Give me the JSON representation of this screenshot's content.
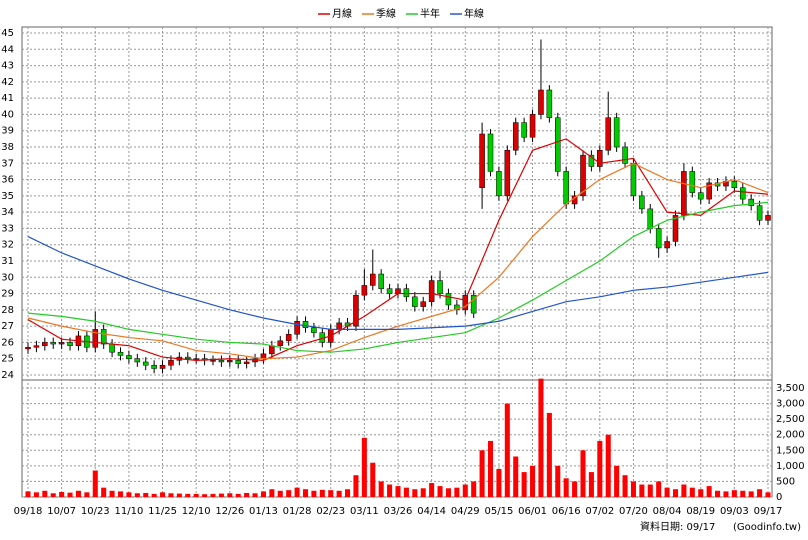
{
  "chart_data": {
    "type": "candlestick",
    "up_color": "#dd0000",
    "down_color": "#00cc00",
    "grid": true,
    "legend": "top",
    "categories": [
      "09/18",
      null,
      null,
      null,
      "10/07",
      null,
      null,
      null,
      "10/23",
      null,
      null,
      null,
      "11/10",
      null,
      null,
      null,
      "11/25",
      null,
      null,
      null,
      "12/10",
      null,
      null,
      null,
      "12/26",
      null,
      null,
      null,
      "01/13",
      null,
      null,
      null,
      "01/28",
      null,
      null,
      null,
      "02/23",
      null,
      null,
      null,
      "03/11",
      null,
      null,
      null,
      "03/26",
      null,
      null,
      null,
      "04/14",
      null,
      null,
      null,
      "04/29",
      null,
      null,
      null,
      "05/15",
      null,
      null,
      null,
      "06/01",
      null,
      null,
      null,
      "06/16",
      null,
      null,
      null,
      "07/02",
      null,
      null,
      null,
      "07/20",
      null,
      null,
      null,
      "08/04",
      null,
      null,
      null,
      "08/19",
      null,
      null,
      null,
      "09/03",
      null,
      null,
      null,
      "09/17"
    ],
    "open": [
      25.6,
      25.7,
      25.8,
      26.0,
      25.9,
      26.0,
      25.8,
      26.4,
      25.7,
      26.8,
      25.9,
      25.4,
      25.2,
      25.0,
      24.8,
      24.6,
      24.4,
      24.6,
      24.9,
      25.1,
      25.0,
      25.0,
      24.9,
      24.9,
      24.8,
      24.9,
      24.7,
      24.8,
      25.0,
      25.3,
      25.8,
      26.1,
      26.5,
      27.3,
      26.9,
      26.6,
      26.0,
      26.8,
      27.2,
      27.0,
      28.9,
      29.5,
      30.2,
      29.3,
      29.0,
      29.3,
      28.8,
      28.2,
      28.5,
      29.8,
      29.0,
      28.3,
      28.0,
      28.9,
      35.5,
      38.8,
      36.5,
      35.0,
      37.8,
      39.5,
      38.6,
      40.0,
      41.5,
      39.8,
      36.5,
      34.5,
      35.0,
      37.5,
      36.8,
      37.8,
      39.8,
      38.0,
      37.0,
      35.0,
      34.2,
      33.0,
      31.8,
      32.2,
      33.8,
      36.5,
      35.2,
      34.8,
      35.8,
      35.6,
      35.9,
      35.5,
      34.8,
      34.4,
      33.5
    ],
    "high": [
      26.0,
      26.1,
      26.3,
      26.3,
      26.3,
      26.3,
      26.7,
      26.7,
      27.9,
      27.1,
      26.2,
      25.7,
      25.5,
      25.3,
      25.1,
      24.9,
      24.9,
      25.2,
      25.4,
      25.4,
      25.3,
      25.3,
      25.2,
      25.2,
      25.2,
      25.2,
      25.1,
      25.3,
      25.6,
      26.1,
      26.4,
      26.8,
      27.6,
      27.6,
      27.2,
      26.9,
      27.1,
      27.5,
      27.5,
      29.2,
      30.5,
      31.7,
      30.5,
      29.6,
      29.6,
      29.6,
      29.1,
      28.8,
      30.1,
      30.4,
      29.3,
      28.6,
      29.2,
      29.2,
      39.5,
      39.1,
      36.8,
      38.1,
      39.8,
      39.8,
      40.3,
      44.6,
      41.8,
      40.1,
      36.8,
      35.3,
      37.8,
      37.8,
      38.1,
      41.4,
      40.1,
      38.3,
      37.3,
      35.3,
      34.5,
      33.3,
      32.5,
      34.1,
      37.0,
      36.8,
      35.5,
      36.1,
      36.1,
      36.2,
      36.2,
      35.8,
      35.1,
      34.7,
      34.1
    ],
    "low": [
      25.3,
      25.4,
      25.5,
      25.6,
      25.6,
      25.5,
      25.5,
      25.4,
      25.4,
      25.6,
      25.1,
      24.9,
      24.7,
      24.5,
      24.3,
      24.1,
      24.1,
      24.3,
      24.6,
      24.7,
      24.7,
      24.6,
      24.6,
      24.5,
      24.5,
      24.4,
      24.4,
      24.5,
      24.7,
      25.0,
      25.5,
      25.8,
      26.2,
      26.6,
      26.3,
      25.7,
      25.7,
      26.5,
      26.7,
      26.7,
      28.6,
      29.2,
      29.0,
      28.7,
      28.7,
      28.5,
      27.9,
      27.9,
      28.2,
      28.7,
      28.0,
      27.7,
      27.7,
      27.5,
      34.2,
      36.2,
      34.7,
      34.7,
      37.5,
      38.3,
      38.3,
      39.7,
      39.5,
      36.2,
      34.2,
      34.2,
      34.7,
      36.5,
      36.5,
      37.5,
      37.7,
      36.7,
      34.7,
      33.9,
      32.7,
      31.2,
      31.5,
      31.9,
      33.5,
      34.9,
      34.5,
      34.5,
      35.3,
      35.3,
      35.2,
      34.5,
      34.1,
      33.2,
      33.2
    ],
    "close": [
      25.7,
      25.8,
      26.0,
      25.9,
      26.0,
      25.8,
      26.4,
      25.7,
      26.8,
      25.9,
      25.4,
      25.2,
      25.0,
      24.8,
      24.6,
      24.4,
      24.6,
      24.9,
      25.1,
      25.0,
      25.0,
      24.9,
      24.9,
      24.8,
      24.9,
      24.7,
      24.8,
      25.0,
      25.3,
      25.8,
      26.1,
      26.5,
      27.3,
      26.9,
      26.6,
      26.0,
      26.8,
      27.2,
      27.0,
      28.9,
      29.5,
      30.2,
      29.3,
      29.0,
      29.3,
      28.8,
      28.2,
      28.5,
      29.8,
      29.0,
      28.3,
      28.0,
      28.9,
      27.8,
      38.8,
      36.5,
      35.0,
      37.8,
      39.5,
      38.6,
      40.0,
      41.5,
      39.8,
      36.5,
      34.5,
      35.0,
      37.5,
      36.8,
      37.8,
      39.8,
      38.0,
      37.0,
      35.0,
      34.2,
      33.0,
      31.8,
      32.2,
      33.8,
      36.5,
      35.2,
      34.8,
      35.8,
      35.6,
      35.9,
      35.5,
      34.8,
      34.4,
      33.5,
      33.8
    ],
    "volume": [
      180,
      150,
      200,
      120,
      160,
      140,
      200,
      150,
      850,
      300,
      200,
      180,
      150,
      120,
      130,
      100,
      150,
      120,
      110,
      100,
      100,
      90,
      100,
      110,
      120,
      100,
      130,
      120,
      180,
      250,
      200,
      220,
      300,
      250,
      200,
      230,
      220,
      200,
      250,
      700,
      1900,
      1100,
      500,
      400,
      350,
      300,
      250,
      280,
      450,
      350,
      280,
      300,
      400,
      500,
      1500,
      1800,
      900,
      3000,
      1300,
      800,
      1000,
      3800,
      2700,
      1000,
      600,
      500,
      1500,
      800,
      1800,
      2000,
      1000,
      700,
      500,
      400,
      400,
      500,
      300,
      250,
      400,
      300,
      250,
      350,
      200,
      180,
      220,
      200,
      180,
      250,
      150
    ],
    "volume_color": "#ff0000",
    "series": [
      {
        "name": "月線",
        "color": "#dd0000",
        "x": [
          0,
          4,
          8,
          12,
          16,
          20,
          24,
          28,
          32,
          36,
          40,
          44,
          48,
          52,
          56,
          60,
          64,
          68,
          72,
          76,
          80,
          84,
          88
        ],
        "values": [
          27.4,
          26.2,
          26.0,
          25.8,
          25.1,
          24.9,
          25.0,
          24.9,
          25.8,
          26.4,
          27.6,
          29.0,
          29.0,
          28.6,
          33.5,
          37.8,
          38.5,
          37.0,
          37.3,
          34.0,
          33.8,
          35.3,
          35.1
        ]
      },
      {
        "name": "季線",
        "color": "#ee7722",
        "x": [
          0,
          4,
          8,
          12,
          16,
          20,
          24,
          28,
          32,
          36,
          40,
          44,
          48,
          52,
          56,
          60,
          64,
          68,
          72,
          76,
          80,
          84,
          88
        ],
        "values": [
          27.5,
          27.0,
          26.6,
          26.3,
          26.1,
          25.5,
          25.3,
          25.0,
          25.1,
          25.5,
          26.3,
          27.0,
          27.6,
          28.2,
          30.0,
          32.5,
          34.5,
          36.0,
          37.0,
          36.0,
          35.5,
          36.0,
          35.2
        ]
      },
      {
        "name": "半年",
        "color": "#22cc22",
        "x": [
          0,
          4,
          8,
          12,
          16,
          20,
          24,
          28,
          32,
          36,
          40,
          44,
          48,
          52,
          56,
          60,
          64,
          68,
          72,
          76,
          80,
          84,
          88
        ],
        "values": [
          27.8,
          27.6,
          27.3,
          26.8,
          26.5,
          26.2,
          26.0,
          25.9,
          25.5,
          25.4,
          25.6,
          26.0,
          26.3,
          26.6,
          27.5,
          28.6,
          29.8,
          31.0,
          32.5,
          33.5,
          34.0,
          34.4,
          34.6
        ]
      },
      {
        "name": "年線",
        "color": "#2255cc",
        "x": [
          0,
          4,
          8,
          12,
          16,
          20,
          24,
          28,
          32,
          36,
          40,
          44,
          48,
          52,
          56,
          60,
          64,
          68,
          72,
          76,
          80,
          84,
          88
        ],
        "values": [
          32.5,
          31.5,
          30.7,
          29.9,
          29.2,
          28.6,
          28.0,
          27.5,
          27.1,
          26.8,
          26.8,
          26.8,
          26.9,
          27.0,
          27.3,
          27.9,
          28.5,
          28.8,
          29.2,
          29.4,
          29.7,
          30.0,
          30.3
        ]
      }
    ],
    "ylim": [
      24,
      45
    ],
    "yticks": [
      24,
      25,
      26,
      27,
      28,
      29,
      30,
      31,
      32,
      33,
      34,
      35,
      36,
      37,
      38,
      39,
      40,
      41,
      42,
      43,
      44,
      45
    ],
    "y2lim": [
      0,
      3500
    ],
    "y2ticks": [
      0,
      500,
      {
        "value": 1000,
        "label": "1,000"
      },
      {
        "value": 1500,
        "label": "1,500"
      },
      {
        "value": 2000,
        "label": "2,000"
      },
      {
        "value": 2500,
        "label": "2,500"
      },
      {
        "value": 3000,
        "label": "3,000"
      },
      {
        "value": 3500,
        "label": "3,500"
      }
    ],
    "footer": "資料日期: 09/17",
    "source": "(Goodinfo.tw)"
  }
}
